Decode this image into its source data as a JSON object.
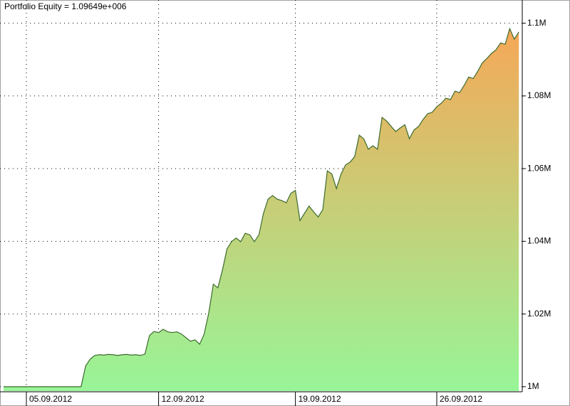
{
  "chart_data": {
    "type": "area",
    "title": "Portfolio Equity = 1.09649e+006",
    "categories": [
      null,
      null,
      null,
      null,
      null,
      "05.09.2012",
      null,
      null,
      null,
      null,
      null,
      null,
      null,
      null,
      null,
      null,
      null,
      null,
      null,
      null,
      null,
      null,
      null,
      null,
      null,
      null,
      null,
      null,
      null,
      null,
      null,
      null,
      null,
      null,
      "12.09.2012",
      null,
      null,
      null,
      null,
      null,
      null,
      null,
      null,
      null,
      null,
      null,
      null,
      null,
      null,
      null,
      null,
      null,
      null,
      null,
      null,
      null,
      null,
      null,
      null,
      null,
      null,
      null,
      null,
      null,
      "19.09.2012",
      null,
      null,
      null,
      null,
      null,
      null,
      null,
      null,
      null,
      null,
      null,
      null,
      null,
      null,
      null,
      null,
      null,
      null,
      null,
      null,
      null,
      null,
      null,
      null,
      null,
      null,
      null,
      null,
      null,
      null,
      "26.09.2012",
      null,
      null,
      null,
      null,
      null,
      null,
      null,
      null,
      null,
      null,
      null,
      null,
      null,
      null,
      null,
      null,
      null,
      null
    ],
    "values": [
      1000000,
      1000000,
      1000000,
      1000000,
      1000000,
      1000000,
      1000000,
      1000000,
      1000000,
      1000000,
      1000000,
      1000000,
      1000000,
      1000000,
      1000000,
      1000000,
      1000000,
      1000000,
      1005700,
      1007600,
      1008600,
      1008800,
      1008700,
      1008900,
      1008800,
      1008600,
      1008800,
      1008900,
      1008700,
      1008800,
      1008600,
      1009000,
      1014100,
      1015200,
      1014900,
      1015800,
      1015100,
      1014900,
      1015100,
      1014500,
      1013500,
      1012500,
      1012900,
      1011700,
      1014500,
      1020300,
      1028200,
      1027200,
      1032100,
      1037900,
      1039900,
      1040900,
      1039900,
      1042200,
      1041800,
      1039900,
      1041800,
      1047700,
      1051600,
      1052600,
      1051600,
      1051200,
      1050600,
      1053200,
      1054000,
      1045700,
      1047700,
      1049700,
      1048100,
      1046700,
      1048700,
      1059400,
      1058500,
      1054500,
      1058500,
      1061000,
      1061800,
      1063300,
      1069200,
      1068200,
      1065300,
      1066300,
      1065300,
      1074100,
      1073100,
      1071600,
      1070200,
      1071200,
      1072100,
      1068200,
      1070600,
      1071600,
      1073500,
      1075100,
      1075500,
      1077000,
      1078000,
      1079400,
      1079000,
      1081300,
      1080900,
      1082900,
      1085200,
      1084800,
      1086800,
      1089100,
      1090300,
      1091700,
      1092700,
      1094600,
      1094200,
      1098500,
      1095600,
      1097600
    ],
    "color": "#3d6b2e",
    "gradient": [
      "#98f598",
      "#f5a858"
    ],
    "ylim": [
      998800,
      1105800
    ],
    "yticks": [
      {
        "value": 1000000,
        "label": "1M"
      },
      {
        "value": 1020000,
        "label": "1.02M"
      },
      {
        "value": 1040000,
        "label": "1.04M"
      },
      {
        "value": 1060000,
        "label": "1.06M"
      },
      {
        "value": 1080000,
        "label": "1.08M"
      },
      {
        "value": 1100000,
        "label": "1.1M"
      }
    ],
    "grid": true
  }
}
